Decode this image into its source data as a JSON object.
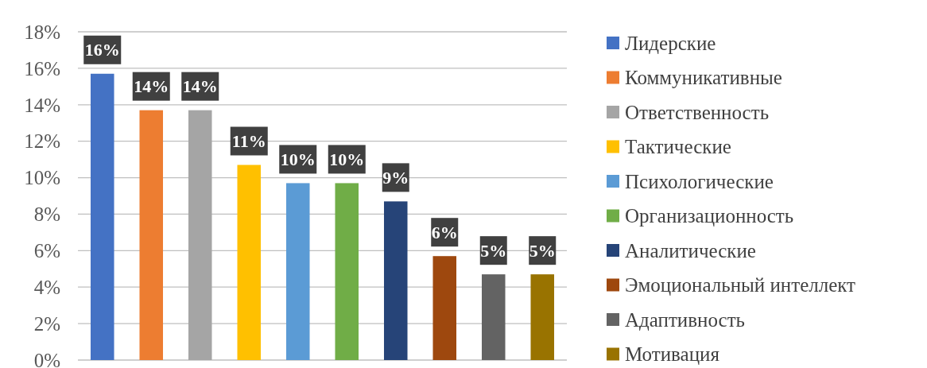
{
  "chart_data": {
    "type": "bar",
    "categories": [
      null,
      null,
      null,
      null,
      null,
      null,
      null,
      null,
      null,
      null
    ],
    "series": [
      {
        "name": "Лидерские",
        "color": "#4472c4",
        "values": [
          15.7,
          null,
          null,
          null,
          null,
          null,
          null,
          null,
          null,
          null
        ],
        "value_labels": [
          "16%",
          null,
          null,
          null,
          null,
          null,
          null,
          null,
          null,
          null
        ]
      },
      {
        "name": "Коммуникативные",
        "color": "#ed7d31",
        "values": [
          null,
          13.7,
          null,
          null,
          null,
          null,
          null,
          null,
          null,
          null
        ],
        "value_labels": [
          null,
          "14%",
          null,
          null,
          null,
          null,
          null,
          null,
          null,
          null
        ]
      },
      {
        "name": "Ответственность",
        "color": "#a5a5a5",
        "values": [
          null,
          null,
          13.7,
          null,
          null,
          null,
          null,
          null,
          null,
          null
        ],
        "value_labels": [
          null,
          null,
          "14%",
          null,
          null,
          null,
          null,
          null,
          null,
          null
        ]
      },
      {
        "name": "Тактические",
        "color": "#ffc000",
        "values": [
          null,
          null,
          null,
          10.7,
          null,
          null,
          null,
          null,
          null,
          null
        ],
        "value_labels": [
          null,
          null,
          null,
          "11%",
          null,
          null,
          null,
          null,
          null,
          null
        ]
      },
      {
        "name": "Психологические",
        "color": "#5b9bd5",
        "values": [
          null,
          null,
          null,
          null,
          9.7,
          null,
          null,
          null,
          null,
          null
        ],
        "value_labels": [
          null,
          null,
          null,
          null,
          "10%",
          null,
          null,
          null,
          null,
          null
        ]
      },
      {
        "name": "Организационность",
        "color": "#70ad47",
        "values": [
          null,
          null,
          null,
          null,
          null,
          9.7,
          null,
          null,
          null,
          null
        ],
        "value_labels": [
          null,
          null,
          null,
          null,
          null,
          "10%",
          null,
          null,
          null,
          null
        ]
      },
      {
        "name": "Аналитические",
        "color": "#264478",
        "values": [
          null,
          null,
          null,
          null,
          null,
          null,
          8.7,
          null,
          null,
          null
        ],
        "value_labels": [
          null,
          null,
          null,
          null,
          null,
          null,
          "9%",
          null,
          null,
          null
        ]
      },
      {
        "name": "Эмоциональный интеллект",
        "color": "#9e480e",
        "values": [
          null,
          null,
          null,
          null,
          null,
          null,
          null,
          5.7,
          null,
          null
        ],
        "value_labels": [
          null,
          null,
          null,
          null,
          null,
          null,
          null,
          "6%",
          null,
          null
        ]
      },
      {
        "name": "Адаптивность",
        "color": "#636363",
        "values": [
          null,
          null,
          null,
          null,
          null,
          null,
          null,
          null,
          4.7,
          null
        ],
        "value_labels": [
          null,
          null,
          null,
          null,
          null,
          null,
          null,
          null,
          "5%",
          null
        ]
      },
      {
        "name": "Мотивация",
        "color": "#997300",
        "values": [
          null,
          null,
          null,
          null,
          null,
          null,
          null,
          null,
          null,
          4.7
        ],
        "value_labels": [
          null,
          null,
          null,
          null,
          null,
          null,
          null,
          null,
          null,
          "5%"
        ]
      }
    ],
    "ylim": [
      0,
      18
    ],
    "yticks": [
      {
        "value": 0,
        "label": "0%"
      },
      {
        "value": 2,
        "label": "2%"
      },
      {
        "value": 4,
        "label": "4%"
      },
      {
        "value": 6,
        "label": "6%"
      },
      {
        "value": 8,
        "label": "8%"
      },
      {
        "value": 10,
        "label": "10%"
      },
      {
        "value": 12,
        "label": "12%"
      },
      {
        "value": 14,
        "label": "14%"
      },
      {
        "value": 16,
        "label": "16%"
      },
      {
        "value": 18,
        "label": "18%"
      }
    ],
    "grid": "y",
    "legend": "right",
    "tick_labels": "y"
  }
}
